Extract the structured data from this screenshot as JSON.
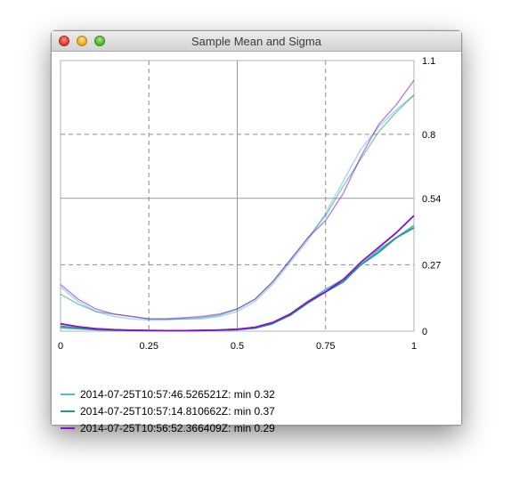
{
  "window": {
    "title": "Sample Mean and Sigma"
  },
  "chart_data": {
    "type": "line",
    "xlim": [
      0,
      1
    ],
    "ylim": [
      0,
      1.1
    ],
    "x_ticks": [
      "0",
      "0.25",
      "0.5",
      "0.75",
      "1"
    ],
    "x_tick_values": [
      0,
      0.25,
      0.5,
      0.75,
      1
    ],
    "y_ticks": [
      "0",
      "0.27",
      "0.54",
      "0.8",
      "1.1"
    ],
    "y_tick_values": [
      0,
      0.27,
      0.54,
      0.8,
      1.1
    ],
    "grid": true,
    "legend_position": "bottom-left",
    "series": [
      {
        "name": "2014-07-25T10:57:46.526521Z: min 0.32",
        "color": "#5ab4d8",
        "mean": {
          "x": [
            0,
            0.05,
            0.1,
            0.15,
            0.2,
            0.25,
            0.3,
            0.35,
            0.4,
            0.45,
            0.5,
            0.55,
            0.6,
            0.65,
            0.7,
            0.75,
            0.8,
            0.85,
            0.9,
            0.95,
            1.0
          ],
          "y": [
            0.013,
            0.01,
            0.006,
            0.004,
            0.003,
            0.002,
            0.002,
            0.002,
            0.003,
            0.004,
            0.006,
            0.012,
            0.03,
            0.07,
            0.12,
            0.17,
            0.21,
            0.27,
            0.33,
            0.38,
            0.43
          ]
        },
        "sigma": {
          "x": [
            0,
            0.05,
            0.1,
            0.15,
            0.2,
            0.25,
            0.3,
            0.35,
            0.4,
            0.45,
            0.5,
            0.55,
            0.6,
            0.65,
            0.7,
            0.75,
            0.8,
            0.85,
            0.9,
            0.95,
            1.0
          ],
          "y": [
            0.18,
            0.12,
            0.08,
            0.06,
            0.05,
            0.045,
            0.045,
            0.05,
            0.05,
            0.06,
            0.08,
            0.12,
            0.19,
            0.28,
            0.37,
            0.48,
            0.61,
            0.74,
            0.83,
            0.9,
            0.96
          ]
        }
      },
      {
        "name": "2014-07-25T10:57:14.810662Z: min 0.37",
        "color": "#1f9e80",
        "mean": {
          "x": [
            0,
            0.05,
            0.1,
            0.15,
            0.2,
            0.25,
            0.3,
            0.35,
            0.4,
            0.45,
            0.5,
            0.55,
            0.6,
            0.65,
            0.7,
            0.75,
            0.8,
            0.85,
            0.9,
            0.95,
            1.0
          ],
          "y": [
            0.02,
            0.012,
            0.007,
            0.004,
            0.003,
            0.002,
            0.002,
            0.002,
            0.003,
            0.004,
            0.007,
            0.013,
            0.032,
            0.065,
            0.115,
            0.16,
            0.2,
            0.27,
            0.32,
            0.38,
            0.42
          ]
        },
        "sigma": {
          "x": [
            0,
            0.05,
            0.1,
            0.15,
            0.2,
            0.25,
            0.3,
            0.35,
            0.4,
            0.45,
            0.5,
            0.55,
            0.6,
            0.65,
            0.7,
            0.75,
            0.8,
            0.85,
            0.9,
            0.95,
            1.0
          ],
          "y": [
            0.15,
            0.11,
            0.08,
            0.07,
            0.06,
            0.05,
            0.05,
            0.05,
            0.055,
            0.065,
            0.09,
            0.13,
            0.2,
            0.29,
            0.38,
            0.47,
            0.59,
            0.7,
            0.81,
            0.89,
            0.96
          ]
        }
      },
      {
        "name": "2014-07-25T10:56:52.366409Z: min 0.29",
        "color": "#8a0fd0",
        "mean": {
          "x": [
            0,
            0.05,
            0.1,
            0.15,
            0.2,
            0.25,
            0.3,
            0.35,
            0.4,
            0.45,
            0.5,
            0.55,
            0.6,
            0.65,
            0.7,
            0.75,
            0.8,
            0.85,
            0.9,
            0.95,
            1.0
          ],
          "y": [
            0.03,
            0.018,
            0.01,
            0.006,
            0.004,
            0.003,
            0.002,
            0.002,
            0.003,
            0.005,
            0.008,
            0.016,
            0.035,
            0.07,
            0.12,
            0.16,
            0.21,
            0.28,
            0.34,
            0.4,
            0.47
          ]
        },
        "sigma": {
          "x": [
            0,
            0.05,
            0.1,
            0.15,
            0.2,
            0.25,
            0.3,
            0.35,
            0.4,
            0.45,
            0.5,
            0.55,
            0.6,
            0.65,
            0.7,
            0.75,
            0.8,
            0.85,
            0.9,
            0.95,
            1.0
          ],
          "y": [
            0.19,
            0.13,
            0.09,
            0.07,
            0.06,
            0.05,
            0.05,
            0.055,
            0.06,
            0.07,
            0.09,
            0.13,
            0.2,
            0.29,
            0.38,
            0.45,
            0.56,
            0.71,
            0.84,
            0.92,
            1.02
          ]
        }
      }
    ]
  }
}
